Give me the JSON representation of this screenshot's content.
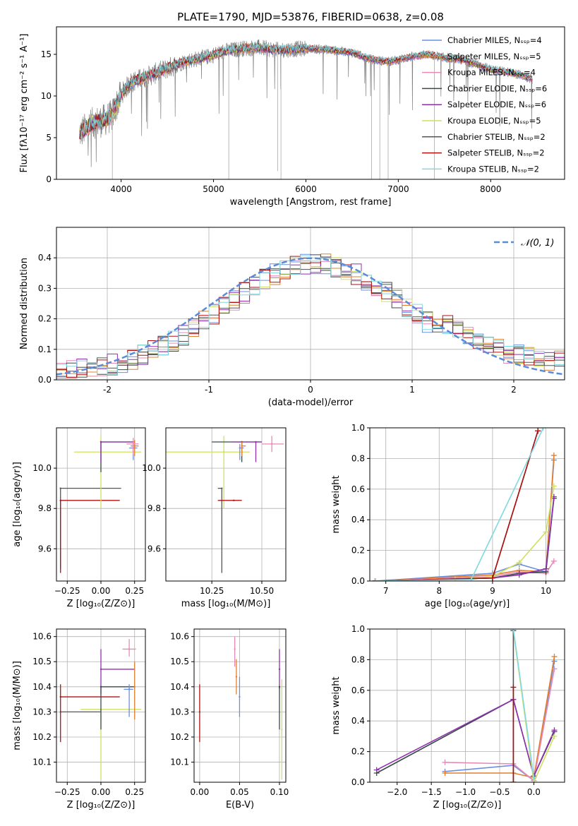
{
  "page_title": "PLATE=1790, MJD=53876, FIBERID=0638, z=0.08",
  "series_colors": {
    "chabrier_miles": "#6a8fe0",
    "salpeter_miles": "#e0802e",
    "kroupa_miles": "#e88ab8",
    "chabrier_elodie": "#3a4a4a",
    "salpeter_elodie": "#9030b0",
    "kroupa_elodie": "#cfe060",
    "chabrier_stelib": "#555555",
    "salpeter_stelib": "#b01010",
    "kroupa_stelib": "#80d8e0",
    "data": "#808080",
    "normal_curve": "#5b8bd8"
  },
  "chart_data": [
    {
      "id": "spectrum",
      "type": "line",
      "xlabel": "wavelength [Angstrom, rest frame]",
      "ylabel": "Flux [fλ10⁻¹⁷ erg cm⁻² s⁻¹ A⁻¹]",
      "xlim": [
        3300,
        8800
      ],
      "ylim": [
        0,
        18.3
      ],
      "xticks": [
        4000,
        5000,
        6000,
        7000,
        8000
      ],
      "yticks": [
        0,
        5,
        10,
        15
      ],
      "legend_position": "right",
      "legend": [
        "Chabrier MILES, Nₛₛₚ=4",
        "Salpeter MILES, Nₛₛₚ=5",
        "Kroupa MILES, Nₛₛₚ=4",
        "Chabrier ELODIE, Nₛₛₚ=6",
        "Salpeter ELODIE, Nₛₛₚ=6",
        "Kroupa ELODIE, Nₛₛₚ=5",
        "Chabrier STELIB, Nₛₛₚ=2",
        "Salpeter STELIB, Nₛₛₚ=2",
        "Kroupa STELIB, Nₛₛₚ=2"
      ],
      "continuum": {
        "wavelength": [
          3550,
          3700,
          3800,
          3900,
          4000,
          4100,
          4300,
          4500,
          4700,
          4900,
          5100,
          5300,
          5500,
          5700,
          6000,
          6200,
          6500,
          6700,
          6900,
          7100,
          7300,
          7500,
          7700,
          8000,
          8300,
          8450
        ],
        "flux": [
          5.5,
          6.8,
          7.0,
          7.6,
          10.2,
          11.6,
          12.4,
          13.3,
          14.2,
          14.6,
          15.3,
          15.7,
          15.8,
          15.5,
          15.7,
          15.6,
          15.2,
          14.4,
          14.1,
          14.6,
          15.0,
          14.6,
          14.3,
          13.2,
          12.6,
          12.0
        ]
      },
      "spikes": [
        {
          "wavelength": 3905,
          "flux": 0
        },
        {
          "wavelength": 5165,
          "flux": 0
        },
        {
          "wavelength": 5695,
          "flux": 1.0
        },
        {
          "wavelength": 5730,
          "flux": 0
        },
        {
          "wavelength": 6710,
          "flux": 0
        },
        {
          "wavelength": 6800,
          "flux": 0
        },
        {
          "wavelength": 6890,
          "flux": 0
        },
        {
          "wavelength": 7390,
          "flux": 0
        }
      ]
    },
    {
      "id": "residuals",
      "type": "step",
      "xlabel": "(data-model)/error",
      "ylabel": "Normed distribution",
      "xlim": [
        -2.5,
        2.5
      ],
      "ylim": [
        0,
        0.5
      ],
      "xticks": [
        -2,
        -1,
        0,
        1,
        2
      ],
      "yticks": [
        0.0,
        0.1,
        0.2,
        0.3,
        0.4
      ],
      "legend": [
        "𝒩(0, 1)"
      ],
      "legend_position": "top-right",
      "normal_curve": {
        "mean": 0,
        "sigma": 1
      },
      "bin_width": 0.1
    },
    {
      "id": "age_vs_Z",
      "type": "errorbar",
      "xlabel": "Z [log₁₀(Z/Z⊙)]",
      "ylabel": "age  [log₁₀(age/yr)]",
      "xlim": [
        -0.33,
        0.33
      ],
      "ylim": [
        9.44,
        10.2
      ],
      "xticks": [
        -0.25,
        0.0,
        0.25
      ],
      "xticklabels": [
        "−0.25",
        "0.00",
        "0.25"
      ],
      "yticks": [
        9.6,
        9.8,
        10.0
      ],
      "points": [
        {
          "series": "chabrier_stelib",
          "x": -0.3,
          "y": 9.9,
          "xerr": [
            0.0,
            0.45
          ],
          "yerr": [
            0.4,
            0.0
          ]
        },
        {
          "series": "salpeter_stelib",
          "x": -0.3,
          "y": 9.84,
          "xerr": [
            0.0,
            0.44
          ],
          "yerr": [
            0.36,
            0.0
          ]
        },
        {
          "series": "kroupa_elodie",
          "x": 0.0,
          "y": 10.08,
          "xerr": [
            0.2,
            0.3
          ],
          "yerr": [
            0.28,
            0.08
          ]
        },
        {
          "series": "chabrier_elodie",
          "x": 0.0,
          "y": 10.13,
          "xerr": [
            0.0,
            0.25
          ],
          "yerr": [
            0.15,
            0.0
          ]
        },
        {
          "series": "salpeter_elodie",
          "x": 0.0,
          "y": 10.13,
          "xerr": [
            0.0,
            0.25
          ],
          "yerr": [
            0.1,
            0.0
          ]
        },
        {
          "series": "chabrier_miles",
          "x": 0.24,
          "y": 10.1,
          "xerr": [
            0.03,
            0.03
          ],
          "yerr": [
            0.06,
            0.03
          ]
        },
        {
          "series": "salpeter_miles",
          "x": 0.25,
          "y": 10.11,
          "xerr": [
            0.03,
            0.03
          ],
          "yerr": [
            0.05,
            0.03
          ]
        },
        {
          "series": "kroupa_miles",
          "x": 0.24,
          "y": 10.12,
          "xerr": [
            0.05,
            0.04
          ],
          "yerr": [
            0.05,
            0.03
          ]
        }
      ]
    },
    {
      "id": "age_vs_mass",
      "type": "errorbar",
      "xlabel": "mass [log₁₀(M/M⊙)]",
      "xlim": [
        10.02,
        10.62
      ],
      "ylim": [
        9.44,
        10.2
      ],
      "xticks": [
        10.25,
        10.5
      ],
      "xticklabels": [
        "10.25",
        "10.50"
      ],
      "yticks": [
        9.6,
        9.8,
        10.0
      ],
      "points": [
        {
          "series": "kroupa_elodie",
          "x": 10.31,
          "y": 10.08,
          "xerr": [
            0.3,
            0.13
          ],
          "yerr": [
            0.28,
            0.08
          ]
        },
        {
          "series": "chabrier_elodie",
          "x": 10.4,
          "y": 10.13,
          "xerr": [
            0.15,
            0.1
          ],
          "yerr": [
            0.1,
            0.0
          ]
        },
        {
          "series": "salpeter_elodie",
          "x": 10.47,
          "y": 10.13,
          "xerr": [
            0.12,
            0.03
          ],
          "yerr": [
            0.1,
            0.0
          ]
        },
        {
          "series": "kroupa_miles",
          "x": 10.55,
          "y": 10.12,
          "xerr": [
            0.05,
            0.06
          ],
          "yerr": [
            0.04,
            0.04
          ]
        },
        {
          "series": "chabrier_miles",
          "x": 10.39,
          "y": 10.1,
          "xerr": [
            0.0,
            0.02
          ],
          "yerr": [
            0.06,
            0.02
          ]
        },
        {
          "series": "salpeter_miles",
          "x": 10.4,
          "y": 10.11,
          "xerr": [
            0.0,
            0.02
          ],
          "yerr": [
            0.05,
            0.02
          ]
        },
        {
          "series": "chabrier_stelib",
          "x": 10.3,
          "y": 9.9,
          "xerr": [
            0.02,
            0.0
          ],
          "yerr": [
            0.42,
            0.0
          ]
        },
        {
          "series": "salpeter_stelib",
          "x": 10.36,
          "y": 9.84,
          "xerr": [
            0.08,
            0.04
          ],
          "yerr": [
            0.0,
            0.0
          ]
        }
      ]
    },
    {
      "id": "weight_vs_age",
      "type": "line",
      "xlabel": "age  [log₁₀(age/yr)]",
      "ylabel": "mass weight",
      "xlim": [
        6.7,
        10.35
      ],
      "ylim": [
        0,
        1.0
      ],
      "xticks": [
        7,
        8,
        9,
        10
      ],
      "yticks": [
        0.0,
        0.2,
        0.4,
        0.6,
        0.8,
        1.0
      ],
      "series": [
        {
          "series": "chabrier_miles",
          "x": [
            6.8,
            9.0,
            9.5,
            10.0,
            10.15
          ],
          "y": [
            0.0,
            0.05,
            0.11,
            0.06,
            0.79
          ]
        },
        {
          "series": "salpeter_miles",
          "x": [
            6.8,
            9.0,
            9.5,
            10.0,
            10.15
          ],
          "y": [
            0.0,
            0.04,
            0.07,
            0.06,
            0.82
          ]
        },
        {
          "series": "kroupa_miles",
          "x": [
            6.8,
            9.0,
            9.5,
            10.0,
            10.15
          ],
          "y": [
            0.0,
            0.03,
            0.06,
            0.05,
            0.13
          ]
        },
        {
          "series": "chabrier_elodie",
          "x": [
            6.8,
            9.0,
            9.5,
            10.0,
            10.15
          ],
          "y": [
            0.0,
            0.02,
            0.05,
            0.06,
            0.54
          ]
        },
        {
          "series": "salpeter_elodie",
          "x": [
            6.8,
            9.0,
            9.5,
            10.0,
            10.15
          ],
          "y": [
            0.0,
            0.02,
            0.04,
            0.08,
            0.55
          ]
        },
        {
          "series": "kroupa_elodie",
          "x": [
            6.8,
            8.3,
            9.0,
            9.5,
            10.0,
            10.15
          ],
          "y": [
            0.0,
            0.01,
            0.03,
            0.12,
            0.32,
            0.62
          ]
        },
        {
          "series": "chabrier_stelib",
          "x": [
            6.8,
            9.0,
            9.85
          ],
          "y": [
            0.0,
            0.02,
            0.98
          ]
        },
        {
          "series": "salpeter_stelib",
          "x": [
            6.8,
            9.0,
            9.85
          ],
          "y": [
            0.0,
            0.02,
            0.98
          ]
        },
        {
          "series": "kroupa_stelib",
          "x": [
            6.8,
            8.6,
            9.95
          ],
          "y": [
            0.0,
            0.01,
            1.0
          ]
        }
      ]
    },
    {
      "id": "mass_vs_Z",
      "type": "errorbar",
      "xlabel": "Z [log₁₀(Z/Z⊙)]",
      "ylabel": "mass [log₁₀(M/M⊙)]",
      "xlim": [
        -0.33,
        0.33
      ],
      "ylim": [
        10.02,
        10.63
      ],
      "xticks": [
        -0.25,
        0.0,
        0.25
      ],
      "xticklabels": [
        "−0.25",
        "0.00",
        "0.25"
      ],
      "yticks": [
        10.1,
        10.2,
        10.3,
        10.4,
        10.5,
        10.6
      ],
      "points": [
        {
          "series": "chabrier_stelib",
          "x": -0.3,
          "y": 10.3,
          "xerr": [
            0.0,
            0.3
          ],
          "yerr": [
            0.0,
            0.0
          ]
        },
        {
          "series": "salpeter_stelib",
          "x": -0.3,
          "y": 10.36,
          "xerr": [
            0.0,
            0.44
          ],
          "yerr": [
            0.18,
            0.05
          ]
        },
        {
          "series": "kroupa_elodie",
          "x": 0.0,
          "y": 10.31,
          "xerr": [
            0.15,
            0.3
          ],
          "yerr": [
            0.28,
            0.0
          ]
        },
        {
          "series": "salpeter_elodie",
          "x": 0.0,
          "y": 10.47,
          "xerr": [
            0.0,
            0.25
          ],
          "yerr": [
            0.1,
            0.08
          ]
        },
        {
          "series": "chabrier_elodie",
          "x": 0.0,
          "y": 10.4,
          "xerr": [
            0.0,
            0.25
          ],
          "yerr": [
            0.17,
            0.0
          ]
        },
        {
          "series": "chabrier_miles",
          "x": 0.21,
          "y": 10.39,
          "xerr": [
            0.04,
            0.03
          ],
          "yerr": [
            0.11,
            0.02
          ]
        },
        {
          "series": "salpeter_miles",
          "x": 0.25,
          "y": 10.4,
          "xerr": [
            0.0,
            0.0
          ],
          "yerr": [
            0.13,
            0.1
          ]
        },
        {
          "series": "kroupa_miles",
          "x": 0.21,
          "y": 10.55,
          "xerr": [
            0.05,
            0.05
          ],
          "yerr": [
            0.03,
            0.04
          ]
        }
      ]
    },
    {
      "id": "mass_vs_ebv",
      "type": "errorbar",
      "xlabel": "E(B-V)",
      "xlim": [
        -0.007,
        0.108
      ],
      "ylim": [
        10.02,
        10.63
      ],
      "xticks": [
        0.0,
        0.05,
        0.1
      ],
      "xticklabels": [
        "0.00",
        "0.05",
        "0.10"
      ],
      "yticks": [
        10.1,
        10.2,
        10.3,
        10.4,
        10.5,
        10.6
      ],
      "points": [
        {
          "series": "salpeter_stelib",
          "x": 0.0,
          "y": 10.3,
          "yerr": [
            0.12,
            0.11
          ]
        },
        {
          "series": "chabrier_stelib",
          "x": 0.0,
          "y": 10.3,
          "yerr": [
            0.0,
            0.0
          ]
        },
        {
          "series": "kroupa_miles",
          "x": 0.044,
          "y": 10.55,
          "yerr": [
            0.07,
            0.05
          ]
        },
        {
          "series": "salpeter_miles",
          "x": 0.046,
          "y": 10.44,
          "yerr": [
            0.07,
            0.07
          ]
        },
        {
          "series": "chabrier_miles",
          "x": 0.05,
          "y": 10.36,
          "yerr": [
            0.08,
            0.08
          ]
        },
        {
          "series": "salpeter_elodie",
          "x": 0.1,
          "y": 10.47,
          "yerr": [
            0.08,
            0.08
          ]
        },
        {
          "series": "chabrier_elodie",
          "x": 0.1,
          "y": 10.4,
          "yerr": [
            0.17,
            0.0
          ]
        },
        {
          "series": "kroupa_elodie",
          "x": 0.103,
          "y": 10.23,
          "yerr": [
            0.2,
            0.2
          ]
        }
      ]
    },
    {
      "id": "weight_vs_Z",
      "type": "line",
      "xlabel": "Z [log₁₀(Z/Z⊙)]",
      "ylabel": "mass weight",
      "xlim": [
        -2.4,
        0.45
      ],
      "ylim": [
        0,
        1.0
      ],
      "xticks": [
        -2.0,
        -1.5,
        -1.0,
        -0.5,
        0.0
      ],
      "xticklabels": [
        "−2.0",
        "−1.5",
        "−1.0",
        "−0.5",
        "0.0"
      ],
      "yticks": [
        0.0,
        0.2,
        0.4,
        0.6,
        0.8,
        1.0
      ],
      "series": [
        {
          "series": "chabrier_miles",
          "x": [
            -1.3,
            -0.3,
            0.0,
            0.3
          ],
          "y": [
            0.07,
            0.11,
            0.01,
            0.79
          ]
        },
        {
          "series": "salpeter_miles",
          "x": [
            -1.3,
            -0.3,
            0.0,
            0.3
          ],
          "y": [
            0.06,
            0.06,
            0.03,
            0.82
          ]
        },
        {
          "series": "kroupa_miles",
          "x": [
            -1.3,
            -0.3,
            0.0,
            0.3
          ],
          "y": [
            0.13,
            0.12,
            0.01,
            0.74
          ]
        },
        {
          "series": "chabrier_elodie",
          "x": [
            -2.3,
            -0.3,
            0.0,
            0.3
          ],
          "y": [
            0.06,
            0.54,
            0.04,
            0.33
          ]
        },
        {
          "series": "salpeter_elodie",
          "x": [
            -2.3,
            -0.3,
            0.0,
            0.3
          ],
          "y": [
            0.08,
            0.54,
            0.04,
            0.34
          ]
        },
        {
          "series": "kroupa_elodie",
          "x": [
            -0.3,
            0.0,
            0.3
          ],
          "y": [
            0.99,
            0.0,
            0.3
          ]
        },
        {
          "series": "chabrier_stelib",
          "x": [
            -0.3,
            -0.3
          ],
          "y": [
            0.0,
            0.99
          ]
        },
        {
          "series": "salpeter_stelib",
          "x": [
            -0.3,
            -0.3
          ],
          "y": [
            0.0,
            0.62
          ]
        },
        {
          "series": "kroupa_stelib",
          "x": [
            -0.3,
            0.0
          ],
          "y": [
            1.0,
            0.03
          ]
        }
      ]
    }
  ]
}
